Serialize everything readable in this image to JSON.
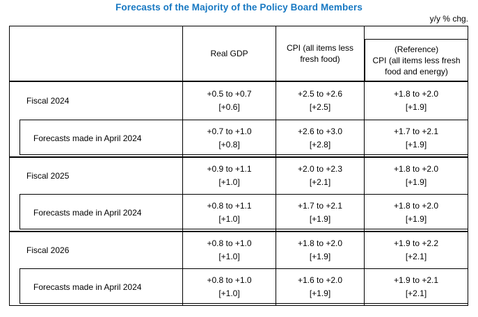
{
  "title": "Forecasts of the Majority of the Policy Board Members",
  "unit_note": "y/y % chg.",
  "colors": {
    "title_blue": "#1778C2",
    "border": "#000000",
    "text": "#000000",
    "background": "#FFFFFF"
  },
  "table": {
    "columns": [
      {
        "label": "Real GDP"
      },
      {
        "label": "CPI (all items less fresh food)"
      },
      {
        "label_line1": "(Reference)",
        "label_line2": "CPI (all items less fresh food and energy)"
      }
    ],
    "rows": [
      {
        "label": "Fiscal 2024",
        "values": [
          {
            "range": "+0.5 to +0.7",
            "median": "[+0.6]"
          },
          {
            "range": "+2.5 to +2.6",
            "median": "[+2.5]"
          },
          {
            "range": "+1.8 to +2.0",
            "median": "[+1.9]"
          }
        ]
      },
      {
        "label": "Forecasts made in April 2024",
        "values": [
          {
            "range": "+0.7 to +1.0",
            "median": "[+0.8]"
          },
          {
            "range": "+2.6 to +3.0",
            "median": "[+2.8]"
          },
          {
            "range": "+1.7 to +2.1",
            "median": "[+1.9]"
          }
        ]
      },
      {
        "label": "Fiscal 2025",
        "values": [
          {
            "range": "+0.9 to +1.1",
            "median": "[+1.0]"
          },
          {
            "range": "+2.0 to +2.3",
            "median": "[+2.1]"
          },
          {
            "range": "+1.8 to +2.0",
            "median": "[+1.9]"
          }
        ]
      },
      {
        "label": "Forecasts made in April 2024",
        "values": [
          {
            "range": "+0.8 to +1.1",
            "median": "[+1.0]"
          },
          {
            "range": "+1.7 to +2.1",
            "median": "[+1.9]"
          },
          {
            "range": "+1.8 to +2.0",
            "median": "[+1.9]"
          }
        ]
      },
      {
        "label": "Fiscal 2026",
        "values": [
          {
            "range": "+0.8 to +1.0",
            "median": "[+1.0]"
          },
          {
            "range": "+1.8 to +2.0",
            "median": "[+1.9]"
          },
          {
            "range": "+1.9 to +2.2",
            "median": "[+2.1]"
          }
        ]
      },
      {
        "label": "Forecasts made in April 2024",
        "values": [
          {
            "range": "+0.8 to +1.0",
            "median": "[+1.0]"
          },
          {
            "range": "+1.6 to +2.0",
            "median": "[+1.9]"
          },
          {
            "range": "+1.9 to +2.1",
            "median": "[+2.1]"
          }
        ]
      }
    ]
  }
}
